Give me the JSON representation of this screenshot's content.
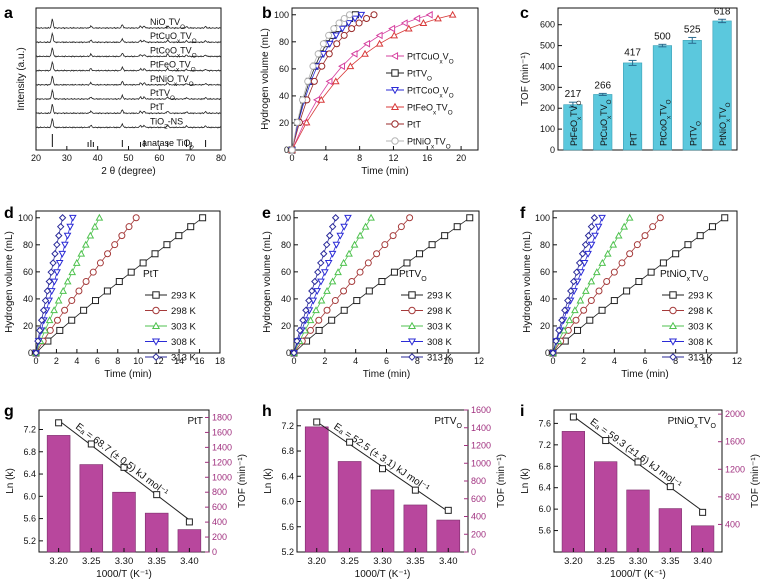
{
  "panels": {
    "a": {
      "letter": "a"
    },
    "b": {
      "letter": "b"
    },
    "c": {
      "letter": "c"
    },
    "d": {
      "letter": "d"
    },
    "e": {
      "letter": "e"
    },
    "f": {
      "letter": "f"
    },
    "g": {
      "letter": "g"
    },
    "h": {
      "letter": "h"
    },
    "i": {
      "letter": "i"
    }
  },
  "chart_data": [
    {
      "id": "a",
      "type": "line",
      "xlabel": "2 θ (degree)",
      "ylabel": "Intensity (a.u.)",
      "xlim": [
        20,
        80
      ],
      "xticks": [
        20,
        30,
        40,
        50,
        60,
        70,
        80
      ],
      "reference_peaks_2theta": [
        25.3,
        36.9,
        37.8,
        38.6,
        48.0,
        53.9,
        55.1,
        62.7,
        68.8,
        70.3,
        75.0
      ],
      "series": [
        {
          "name": "NiOxTVO",
          "label_main": "NiO",
          "label_sub1": "x",
          "label_mid": "TV",
          "label_sub2": "O"
        },
        {
          "name": "PtCuOxTVO",
          "label_main": "PtCuO",
          "label_sub1": "x",
          "label_mid": "TV",
          "label_sub2": "O"
        },
        {
          "name": "PtCoOxTVO",
          "label_main": "PtCoO",
          "label_sub1": "x",
          "label_mid": "TV",
          "label_sub2": "O"
        },
        {
          "name": "PtFeOxTVO",
          "label_main": "PtFeO",
          "label_sub1": "x",
          "label_mid": "TV",
          "label_sub2": "O"
        },
        {
          "name": "PtNiOxTVO",
          "label_main": "PtNiO",
          "label_sub1": "x",
          "label_mid": "TV",
          "label_sub2": "O"
        },
        {
          "name": "PtTVO",
          "label_main": "PtTV",
          "label_sub1": "",
          "label_mid": "",
          "label_sub2": "O"
        },
        {
          "name": "PtT",
          "label_main": "PtT",
          "label_sub1": "",
          "label_mid": "",
          "label_sub2": ""
        },
        {
          "name": "TiO2-NS",
          "label_main": "TiO",
          "label_sub1": "2",
          "label_mid": "-NS",
          "label_sub2": ""
        },
        {
          "name": "anatase TiO2",
          "label_main": "anatase TiO",
          "label_sub1": "2",
          "label_mid": "",
          "label_sub2": ""
        }
      ]
    },
    {
      "id": "b",
      "type": "line",
      "xlabel": "Time (min)",
      "ylabel": "Hydrogen volume (mL)",
      "xlim": [
        0,
        22
      ],
      "ylim": [
        0,
        105
      ],
      "xticks": [
        0,
        4,
        8,
        12,
        16,
        20
      ],
      "yticks": [
        0,
        20,
        40,
        60,
        80,
        100
      ],
      "series": [
        {
          "name": "PtTCuOxVO",
          "label_main": "PtTCuO",
          "label_sub1": "x",
          "label_mid": "V",
          "label_sub2": "O",
          "color": "#d6409f",
          "marker": "triangle-left",
          "tend": 16.3
        },
        {
          "name": "PtTVO",
          "label_main": "PtTV",
          "label_sub1": "",
          "label_mid": "",
          "label_sub2": "O",
          "color": "#222222",
          "marker": "square",
          "tend": 7.5
        },
        {
          "name": "PtTCoOxVO",
          "label_main": "PtTCoO",
          "label_sub1": "x",
          "label_mid": "V",
          "label_sub2": "O",
          "color": "#2b2bd6",
          "marker": "triangle-down",
          "tend": 8.2
        },
        {
          "name": "PtFeOxTVO",
          "label_main": "PtFeO",
          "label_sub1": "x",
          "label_mid": "TV",
          "label_sub2": "O",
          "color": "#d83a3a",
          "marker": "triangle-up",
          "tend": 19.0
        },
        {
          "name": "PtT",
          "label_main": "PtT",
          "label_sub1": "",
          "label_mid": "",
          "label_sub2": "",
          "color": "#9a2a2a",
          "marker": "circle",
          "tend": 9.7
        },
        {
          "name": "PtNiOxTVO",
          "label_main": "PtNiO",
          "label_sub1": "x",
          "label_mid": "TV",
          "label_sub2": "O",
          "color": "#b5b5b5",
          "marker": "circle",
          "tend": 6.8
        }
      ]
    },
    {
      "id": "c",
      "type": "bar",
      "ylabel": "TOF (min⁻¹)",
      "ylim": [
        0,
        680
      ],
      "yticks": [
        0,
        100,
        200,
        300,
        400,
        500,
        600
      ],
      "bar_color": "#5bc8dd",
      "categories": [
        {
          "main": "PtFeO",
          "sub1": "x",
          "mid": "TV",
          "sub2": "O"
        },
        {
          "main": "PtCuO",
          "sub1": "x",
          "mid": "TV",
          "sub2": "O"
        },
        {
          "main": "PtT",
          "sub1": "",
          "mid": "",
          "sub2": ""
        },
        {
          "main": "PtCoO",
          "sub1": "x",
          "mid": "TV",
          "sub2": "O"
        },
        {
          "main": "PtTV",
          "sub1": "",
          "mid": "",
          "sub2": "O"
        },
        {
          "main": "PtNiO",
          "sub1": "x",
          "mid": "TV",
          "sub2": "O"
        }
      ],
      "values": [
        217,
        266,
        417,
        500,
        525,
        618
      ],
      "errors": [
        12,
        5,
        12,
        6,
        14,
        8
      ],
      "value_labels": [
        "217",
        "266",
        "417",
        "500",
        "525",
        "618"
      ]
    },
    {
      "id": "d",
      "type": "scatter",
      "xlabel": "Time (min)",
      "ylabel": "Hydrogen volume (mL)",
      "xlim": [
        0,
        18
      ],
      "ylim": [
        0,
        105
      ],
      "xticks": [
        0,
        2,
        4,
        6,
        8,
        10,
        12,
        14,
        16,
        18
      ],
      "yticks": [
        0,
        20,
        40,
        60,
        80,
        100
      ],
      "sample_label": {
        "main": "PtT",
        "sub1": "",
        "mid": "",
        "sub2": ""
      },
      "series": [
        {
          "name": "293 K",
          "color": "#222222",
          "marker": "square",
          "tend": 16.3
        },
        {
          "name": "298 K",
          "color": "#a53a3a",
          "marker": "circle",
          "tend": 9.8
        },
        {
          "name": "303 K",
          "color": "#4fc24f",
          "marker": "triangle-up",
          "tend": 6.2
        },
        {
          "name": "308 K",
          "color": "#2b2bd6",
          "marker": "triangle-down",
          "tend": 3.6
        },
        {
          "name": "313 K",
          "color": "#2a2a9a",
          "marker": "diamond",
          "tend": 2.6
        }
      ]
    },
    {
      "id": "e",
      "type": "scatter",
      "xlabel": "Time (min)",
      "ylabel": "Hydrogen volume (mL)",
      "xlim": [
        0,
        12
      ],
      "ylim": [
        0,
        105
      ],
      "xticks": [
        0,
        2,
        4,
        6,
        8,
        10,
        12
      ],
      "yticks": [
        0,
        20,
        40,
        60,
        80,
        100
      ],
      "sample_label": {
        "main": "PtTV",
        "sub1": "",
        "mid": "",
        "sub2": "O"
      },
      "series": [
        {
          "name": "293 K",
          "color": "#222222",
          "marker": "square",
          "tend": 11.4
        },
        {
          "name": "298 K",
          "color": "#a53a3a",
          "marker": "circle",
          "tend": 7.5
        },
        {
          "name": "303 K",
          "color": "#4fc24f",
          "marker": "triangle-up",
          "tend": 5.0
        },
        {
          "name": "308 K",
          "color": "#2b2bd6",
          "marker": "triangle-down",
          "tend": 3.5
        },
        {
          "name": "313 K",
          "color": "#2a2a9a",
          "marker": "diamond",
          "tend": 2.7
        }
      ]
    },
    {
      "id": "f",
      "type": "scatter",
      "xlabel": "Time (min)",
      "ylabel": "Hydrogen volume (mL)",
      "xlim": [
        0,
        12
      ],
      "ylim": [
        0,
        105
      ],
      "xticks": [
        0,
        2,
        4,
        6,
        8,
        10,
        12
      ],
      "yticks": [
        0,
        20,
        40,
        60,
        80,
        100
      ],
      "sample_label": {
        "main": "PtNiO",
        "sub1": "x",
        "mid": "TV",
        "sub2": "O"
      },
      "series": [
        {
          "name": "293 K",
          "color": "#222222",
          "marker": "square",
          "tend": 11.2
        },
        {
          "name": "298 K",
          "color": "#a53a3a",
          "marker": "circle",
          "tend": 7.0
        },
        {
          "name": "303 K",
          "color": "#4fc24f",
          "marker": "triangle-up",
          "tend": 5.0
        },
        {
          "name": "308 K",
          "color": "#2b2bd6",
          "marker": "triangle-down",
          "tend": 3.2
        },
        {
          "name": "313 K",
          "color": "#2a2a9a",
          "marker": "diamond",
          "tend": 2.7
        }
      ]
    },
    {
      "id": "g",
      "type": "bar",
      "xlabel": "1000/T (K⁻¹)",
      "ylabel": "Ln (k)",
      "y2label": "TOF (min⁻¹)",
      "bar_color": "#b8479d",
      "line_color": "#222222",
      "categories": [
        "3.20",
        "3.25",
        "3.30",
        "3.35",
        "3.40"
      ],
      "x": [
        3.2,
        3.25,
        3.3,
        3.35,
        3.4
      ],
      "lnk": [
        7.32,
        6.94,
        6.52,
        6.03,
        5.54
      ],
      "tof": [
        1560,
        1170,
        800,
        520,
        300
      ],
      "ylim": [
        5.0,
        7.55
      ],
      "yticks": [
        5.2,
        5.6,
        6.0,
        6.4,
        6.8,
        7.2
      ],
      "y2lim": [
        0,
        1900
      ],
      "y2ticks": [
        0,
        200,
        400,
        600,
        800,
        1000,
        1200,
        1400,
        1600,
        1800
      ],
      "sample_label": {
        "main": "PtT",
        "sub1": "",
        "mid": "",
        "sub2": ""
      },
      "ea_text": "Eₐ = 68.7 (± 0.5) kJ mol⁻¹"
    },
    {
      "id": "h",
      "type": "bar",
      "xlabel": "1000/T (K⁻¹)",
      "ylabel": "Ln (k)",
      "y2label": "TOF (min⁻¹)",
      "bar_color": "#b8479d",
      "line_color": "#222222",
      "categories": [
        "3.20",
        "3.25",
        "3.30",
        "3.35",
        "3.40"
      ],
      "x": [
        3.2,
        3.25,
        3.3,
        3.35,
        3.4
      ],
      "lnk": [
        7.26,
        6.94,
        6.52,
        6.18,
        5.86
      ],
      "tof": [
        1410,
        1020,
        700,
        530,
        360
      ],
      "ylim": [
        5.2,
        7.45
      ],
      "yticks": [
        5.2,
        5.6,
        6.0,
        6.4,
        6.8,
        7.2
      ],
      "y2lim": [
        0,
        1600
      ],
      "y2ticks": [
        0,
        200,
        400,
        600,
        800,
        1000,
        1200,
        1400,
        1600
      ],
      "sample_label": {
        "main": "PtTV",
        "sub1": "",
        "mid": "",
        "sub2": "O"
      },
      "ea_text": "Eₐ = 52.5 (± 3.1) kJ mol⁻¹"
    },
    {
      "id": "i",
      "type": "bar",
      "xlabel": "1000/T (K⁻¹)",
      "ylabel": "Ln (k)",
      "y2label": "TOF (min⁻¹)",
      "bar_color": "#b8479d",
      "line_color": "#222222",
      "categories": [
        "3.20",
        "3.25",
        "3.30",
        "3.35",
        "3.40"
      ],
      "x": [
        3.2,
        3.25,
        3.3,
        3.35,
        3.4
      ],
      "lnk": [
        7.72,
        7.28,
        6.88,
        6.42,
        5.94
      ],
      "tof": [
        1750,
        1310,
        900,
        630,
        380
      ],
      "ylim": [
        5.2,
        7.85
      ],
      "yticks": [
        5.6,
        6.0,
        6.4,
        6.8,
        7.2,
        7.6
      ],
      "y2lim": [
        0,
        2060
      ],
      "y2ticks": [
        400,
        800,
        1200,
        1600,
        2000
      ],
      "sample_label": {
        "main": "PtNiO",
        "sub1": "x",
        "mid": "TV",
        "sub2": "O"
      },
      "ea_text": "Eₐ = 59.3 (±1.6) kJ mol⁻¹"
    }
  ]
}
